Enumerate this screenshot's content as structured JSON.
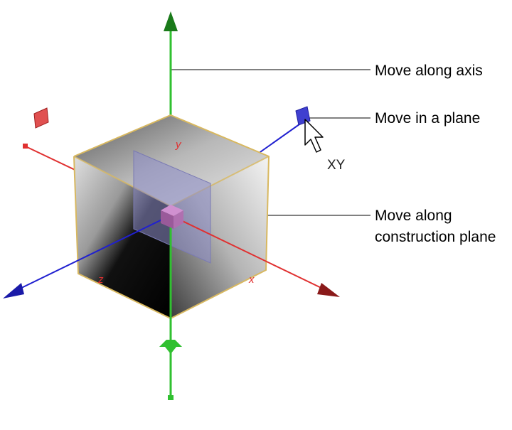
{
  "callouts": {
    "move_along_axis": "Move along axis",
    "move_in_plane": "Move in a plane",
    "move_along_construction_line1": "Move along",
    "move_along_construction_line2": "construction plane"
  },
  "gizmo": {
    "y_axis_tag": "y",
    "x_axis_tag": "x",
    "z_axis_tag": "z",
    "plane_tag": "XY"
  },
  "colors": {
    "x_axis": "#e03030",
    "y_axis": "#30c030",
    "z_axis": "#2020d0",
    "plane_handle": "#8c8cc8",
    "center_handle": "#b070b0",
    "cube_edge": "#d8b860"
  },
  "icons": {
    "pointer": "arrow-cursor-icon"
  }
}
